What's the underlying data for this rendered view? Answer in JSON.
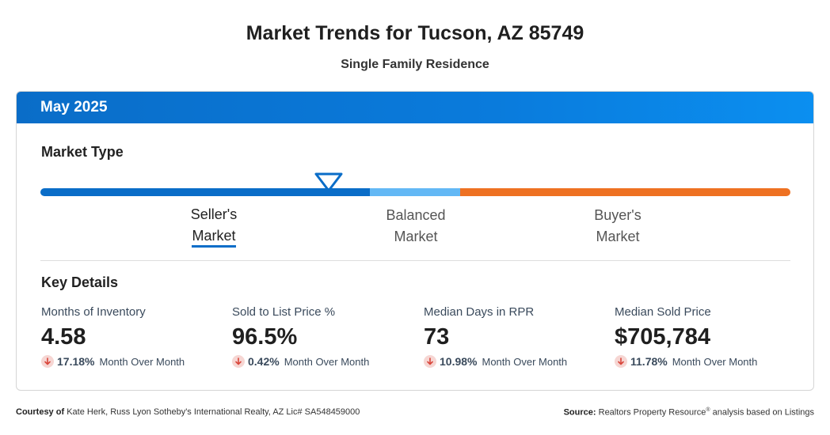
{
  "header": {
    "title": "Market Trends for Tucson, AZ 85749",
    "subtitle": "Single Family Residence"
  },
  "card": {
    "month": "May 2025",
    "market_type_label": "Market Type",
    "market_types": {
      "seller_line1": "Seller's",
      "seller_line2": "Market",
      "balanced_line1": "Balanced",
      "balanced_line2": "Market",
      "buyer_line1": "Buyer's",
      "buyer_line2": "Market"
    },
    "selected_market": "Seller's Market",
    "key_details_label": "Key Details",
    "stats": [
      {
        "label": "Months of Inventory",
        "value": "4.58",
        "change": "17.18%",
        "change_label": "Month Over Month",
        "direction": "down"
      },
      {
        "label": "Sold to List Price %",
        "value": "96.5%",
        "change": "0.42%",
        "change_label": "Month Over Month",
        "direction": "down"
      },
      {
        "label": "Median Days in RPR",
        "value": "73",
        "change": "10.98%",
        "change_label": "Month Over Month",
        "direction": "down"
      },
      {
        "label": "Median Sold Price",
        "value": "$705,784",
        "change": "11.78%",
        "change_label": "Month Over Month",
        "direction": "down"
      }
    ]
  },
  "footer": {
    "courtesy_label": "Courtesy of",
    "courtesy_text": "Kate Herk, Russ Lyon Sotheby's International Realty, AZ Lic# SA548459000",
    "source_label": "Source:",
    "source_text_pre": "Realtors Property Resource",
    "source_reg": "®",
    "source_text_post": " analysis based on Listings"
  },
  "colors": {
    "seller": "#0a6dc8",
    "balanced": "#63b8f5",
    "buyer": "#ee7122",
    "header_bg": "#0a7bdc",
    "down_icon_bg": "#f6d6d3",
    "down_icon_arrow": "#d9463b"
  },
  "icons": {
    "pointer": "triangle-pointer-icon",
    "change": "arrow-down-icon"
  }
}
